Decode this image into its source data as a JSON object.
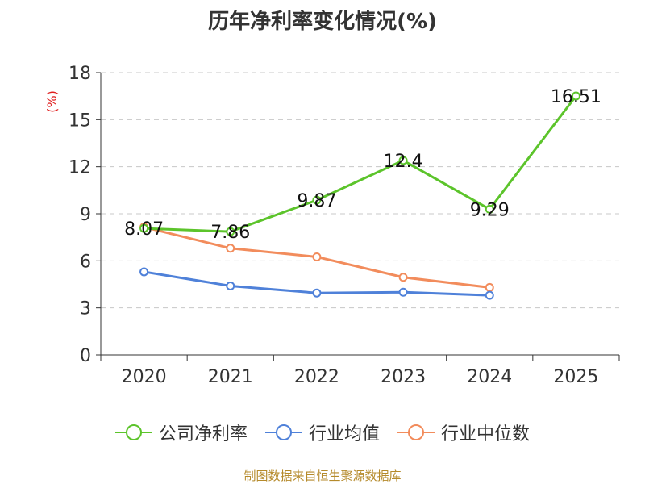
{
  "chart_data": {
    "type": "line",
    "title": "历年净利率变化情况(%)",
    "ylabel": "(%)",
    "xlabel": "",
    "categories": [
      "2020",
      "2021",
      "2022",
      "2023",
      "2024",
      "2025"
    ],
    "ylim": [
      0,
      18
    ],
    "yticks": [
      "0",
      "3",
      "6",
      "9",
      "12",
      "15",
      "18"
    ],
    "grid": true,
    "legend_position": "bottom",
    "series": [
      {
        "name": "公司净利率",
        "color": "#5cc42b",
        "values": [
          8.07,
          7.86,
          9.87,
          12.4,
          9.29,
          16.51
        ],
        "labels": [
          "8.07",
          "7.86",
          "9.87",
          "12.4",
          "9.29",
          "16.51"
        ]
      },
      {
        "name": "行业均值",
        "color": "#4f81d9",
        "values": [
          5.3,
          4.4,
          3.95,
          4.0,
          3.8,
          null
        ]
      },
      {
        "name": "行业中位数",
        "color": "#f28c5c",
        "values": [
          8.15,
          6.8,
          6.25,
          4.95,
          4.3,
          null
        ]
      }
    ]
  },
  "source": "制图数据来自恒生聚源数据库"
}
